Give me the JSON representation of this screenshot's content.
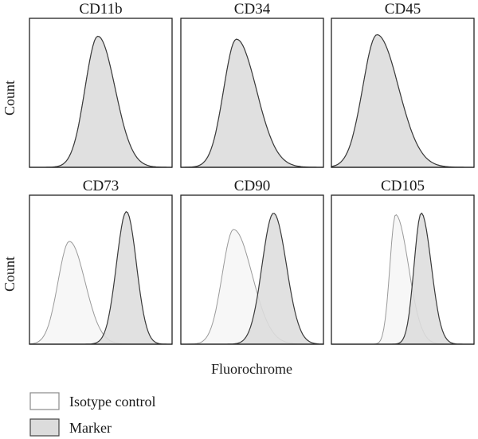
{
  "figure": {
    "ylabel": "Count",
    "xlabel": "Fluorochrome"
  },
  "legend": {
    "placement": "bottom-left",
    "items": [
      {
        "key": "isotype",
        "label": "Isotype control",
        "fill": "#ffffff",
        "stroke": "#8a8a8a"
      },
      {
        "key": "marker",
        "label": "Marker",
        "fill": "#dcdcdc",
        "stroke": "#444444"
      }
    ]
  },
  "colors": {
    "isotype_fill": "#f7f7f7",
    "isotype_stroke": "#9a9a9a",
    "marker_fill": "#dddddd",
    "marker_stroke": "#3a3a3a",
    "frame": "#222222"
  },
  "chart_data": [
    {
      "type": "area",
      "title": "CD11b",
      "xlim": [
        0,
        1
      ],
      "ylim": [
        0,
        1
      ],
      "series": [
        {
          "key": "isotype",
          "peak_x": 0.48,
          "width_left": 0.09,
          "width_right": 0.12,
          "peak": 0.88
        },
        {
          "key": "marker",
          "peak_x": 0.48,
          "width_left": 0.09,
          "width_right": 0.12,
          "peak": 0.88
        }
      ]
    },
    {
      "type": "area",
      "title": "CD34",
      "xlim": [
        0,
        1
      ],
      "ylim": [
        0,
        1
      ],
      "series": [
        {
          "key": "isotype",
          "peak_x": 0.39,
          "width_left": 0.09,
          "width_right": 0.14,
          "peak": 0.86
        },
        {
          "key": "marker",
          "peak_x": 0.39,
          "width_left": 0.09,
          "width_right": 0.14,
          "peak": 0.86
        }
      ]
    },
    {
      "type": "area",
      "title": "CD45",
      "xlim": [
        0,
        1
      ],
      "ylim": [
        0,
        1
      ],
      "series": [
        {
          "key": "isotype",
          "peak_x": 0.32,
          "width_left": 0.1,
          "width_right": 0.15,
          "peak": 0.89
        },
        {
          "key": "marker",
          "peak_x": 0.32,
          "width_left": 0.1,
          "width_right": 0.15,
          "peak": 0.89
        }
      ]
    },
    {
      "type": "area",
      "title": "CD73",
      "xlim": [
        0,
        1
      ],
      "ylim": [
        0,
        1
      ],
      "series": [
        {
          "key": "isotype",
          "peak_x": 0.28,
          "width_left": 0.08,
          "width_right": 0.11,
          "peak": 0.69
        },
        {
          "key": "marker",
          "peak_x": 0.68,
          "width_left": 0.07,
          "width_right": 0.07,
          "peak": 0.89
        }
      ]
    },
    {
      "type": "area",
      "title": "CD90",
      "xlim": [
        0,
        1
      ],
      "ylim": [
        0,
        1
      ],
      "series": [
        {
          "key": "isotype",
          "peak_x": 0.37,
          "width_left": 0.08,
          "width_right": 0.13,
          "peak": 0.77
        },
        {
          "key": "marker",
          "peak_x": 0.65,
          "width_left": 0.08,
          "width_right": 0.09,
          "peak": 0.88
        }
      ]
    },
    {
      "type": "area",
      "title": "CD105",
      "xlim": [
        0,
        1
      ],
      "ylim": [
        0,
        1
      ],
      "series": [
        {
          "key": "isotype",
          "peak_x": 0.45,
          "width_left": 0.04,
          "width_right": 0.09,
          "peak": 0.87
        },
        {
          "key": "marker",
          "peak_x": 0.63,
          "width_left": 0.05,
          "width_right": 0.07,
          "peak": 0.88
        }
      ]
    }
  ]
}
